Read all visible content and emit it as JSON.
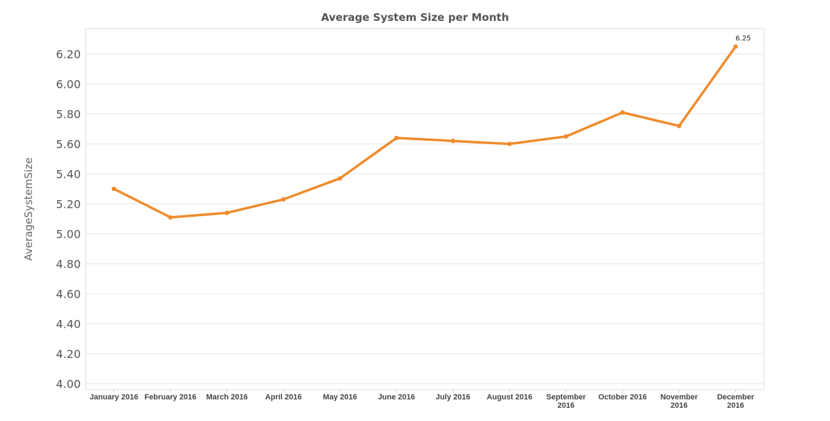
{
  "chart_data": {
    "type": "line",
    "title": "Average System Size per Month",
    "xlabel": "",
    "ylabel": "AverageSystemSize",
    "categories": [
      "January 2016",
      "February 2016",
      "March 2016",
      "April 2016",
      "May 2016",
      "June 2016",
      "July 2016",
      "August 2016",
      "September 2016",
      "October 2016",
      "November 2016",
      "December 2016"
    ],
    "series": [
      {
        "values": [
          5.3,
          5.11,
          5.14,
          5.23,
          5.37,
          5.64,
          5.62,
          5.6,
          5.65,
          5.81,
          5.72,
          6.25
        ]
      }
    ],
    "ylim": [
      3.96,
      6.37
    ],
    "yticks": [
      "4.00",
      "4.20",
      "4.40",
      "4.60",
      "4.80",
      "5.00",
      "5.20",
      "5.40",
      "5.60",
      "5.80",
      "6.00",
      "6.20"
    ],
    "data_labels": [
      {
        "index": 11,
        "text": "6.25"
      }
    ],
    "grid": true,
    "line_color": "#EF8B2C"
  }
}
